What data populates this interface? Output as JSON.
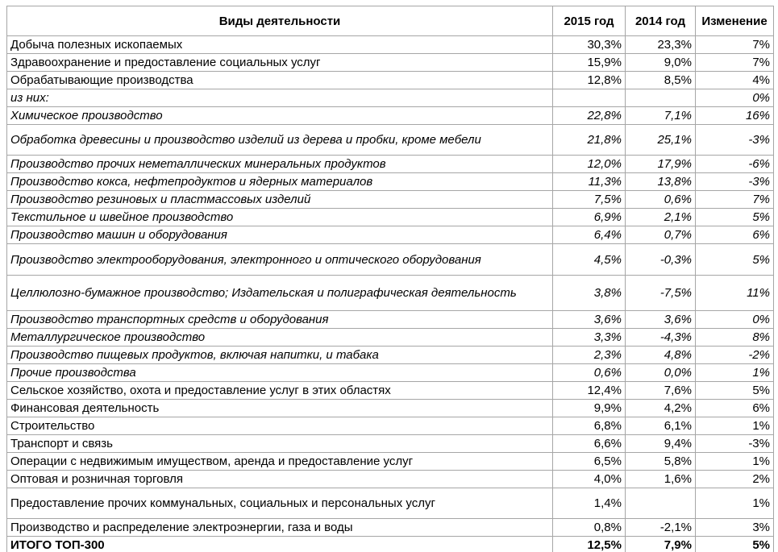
{
  "page": {
    "background_color": "#ffffff",
    "border_color": "#a6a6a6",
    "text_color": "#000000"
  },
  "chart_data": {
    "type": "table",
    "columns": [
      "Виды деятельности",
      "2015 год",
      "2014 год",
      "Изменение"
    ],
    "rows": [
      {
        "activity": "Добыча полезных ископаемых",
        "y2015": "30,3%",
        "y2014": "23,3%",
        "change": "7%",
        "emphasis": "normal"
      },
      {
        "activity": "Здравоохранение и предоставление социальных услуг",
        "y2015": "15,9%",
        "y2014": "9,0%",
        "change": "7%",
        "emphasis": "normal"
      },
      {
        "activity": "Обрабатывающие производства",
        "y2015": "12,8%",
        "y2014": "8,5%",
        "change": "4%",
        "emphasis": "normal"
      },
      {
        "activity": "из них:",
        "y2015": "",
        "y2014": "",
        "change": "0%",
        "emphasis": "italic"
      },
      {
        "activity": "Химическое производство",
        "y2015": "22,8%",
        "y2014": "7,1%",
        "change": "16%",
        "emphasis": "italic"
      },
      {
        "activity": "Обработка древесины и производство изделий из дерева и пробки, кроме мебели",
        "y2015": "21,8%",
        "y2014": "25,1%",
        "change": "-3%",
        "emphasis": "italic"
      },
      {
        "activity": "Производство прочих неметаллических минеральных продуктов",
        "y2015": "12,0%",
        "y2014": "17,9%",
        "change": "-6%",
        "emphasis": "italic"
      },
      {
        "activity": "Производство кокса, нефтепродуктов и ядерных материалов",
        "y2015": "11,3%",
        "y2014": "13,8%",
        "change": "-3%",
        "emphasis": "italic"
      },
      {
        "activity": "Производство резиновых и пластмассовых изделий",
        "y2015": "7,5%",
        "y2014": "0,6%",
        "change": "7%",
        "emphasis": "italic"
      },
      {
        "activity": "Текстильное и швейное производство",
        "y2015": "6,9%",
        "y2014": "2,1%",
        "change": "5%",
        "emphasis": "italic"
      },
      {
        "activity": "Производство машин и оборудования",
        "y2015": "6,4%",
        "y2014": "0,7%",
        "change": "6%",
        "emphasis": "italic"
      },
      {
        "activity": "Производство электрооборудования, электронного и оптического  оборудования",
        "y2015": "4,5%",
        "y2014": "-0,3%",
        "change": "5%",
        "emphasis": "italic"
      },
      {
        "activity": "Целлюлозно-бумажное производство; Издательская и полиграфическая  деятельность",
        "y2015": "3,8%",
        "y2014": "-7,5%",
        "change": "11%",
        "emphasis": "italic"
      },
      {
        "activity": "Производство транспортных средств и оборудования",
        "y2015": "3,6%",
        "y2014": "3,6%",
        "change": "0%",
        "emphasis": "italic"
      },
      {
        "activity": "Металлургическое производство",
        "y2015": "3,3%",
        "y2014": "-4,3%",
        "change": "8%",
        "emphasis": "italic"
      },
      {
        "activity": "Производство пищевых продуктов, включая напитки, и табака",
        "y2015": "2,3%",
        "y2014": "4,8%",
        "change": "-2%",
        "emphasis": "italic"
      },
      {
        "activity": "Прочие производства",
        "y2015": "0,6%",
        "y2014": "0,0%",
        "change": "1%",
        "emphasis": "italic"
      },
      {
        "activity": "Сельское хозяйство, охота и предоставление услуг в этих областях",
        "y2015": "12,4%",
        "y2014": "7,6%",
        "change": "5%",
        "emphasis": "normal"
      },
      {
        "activity": "Финансовая деятельность",
        "y2015": "9,9%",
        "y2014": "4,2%",
        "change": "6%",
        "emphasis": "normal"
      },
      {
        "activity": "Строительство",
        "y2015": "6,8%",
        "y2014": "6,1%",
        "change": "1%",
        "emphasis": "normal"
      },
      {
        "activity": "Транспорт и связь",
        "y2015": "6,6%",
        "y2014": "9,4%",
        "change": "-3%",
        "emphasis": "normal"
      },
      {
        "activity": "Операции с недвижимым имуществом, аренда и предоставление услуг",
        "y2015": "6,5%",
        "y2014": "5,8%",
        "change": "1%",
        "emphasis": "normal"
      },
      {
        "activity": "Оптовая и розничная торговля",
        "y2015": "4,0%",
        "y2014": "1,6%",
        "change": "2%",
        "emphasis": "normal"
      },
      {
        "activity": "Предоставление прочих коммунальных, социальных и персональных  услуг",
        "y2015": "1,4%",
        "y2014": "",
        "change": "1%",
        "emphasis": "normal"
      },
      {
        "activity": "Производство и распределение электроэнергии, газа и воды",
        "y2015": "0,8%",
        "y2014": "-2,1%",
        "change": "3%",
        "emphasis": "normal"
      },
      {
        "activity": "ИТОГО ТОП-300",
        "y2015": "12,5%",
        "y2014": "7,9%",
        "change": "5%",
        "emphasis": "bold"
      }
    ]
  }
}
